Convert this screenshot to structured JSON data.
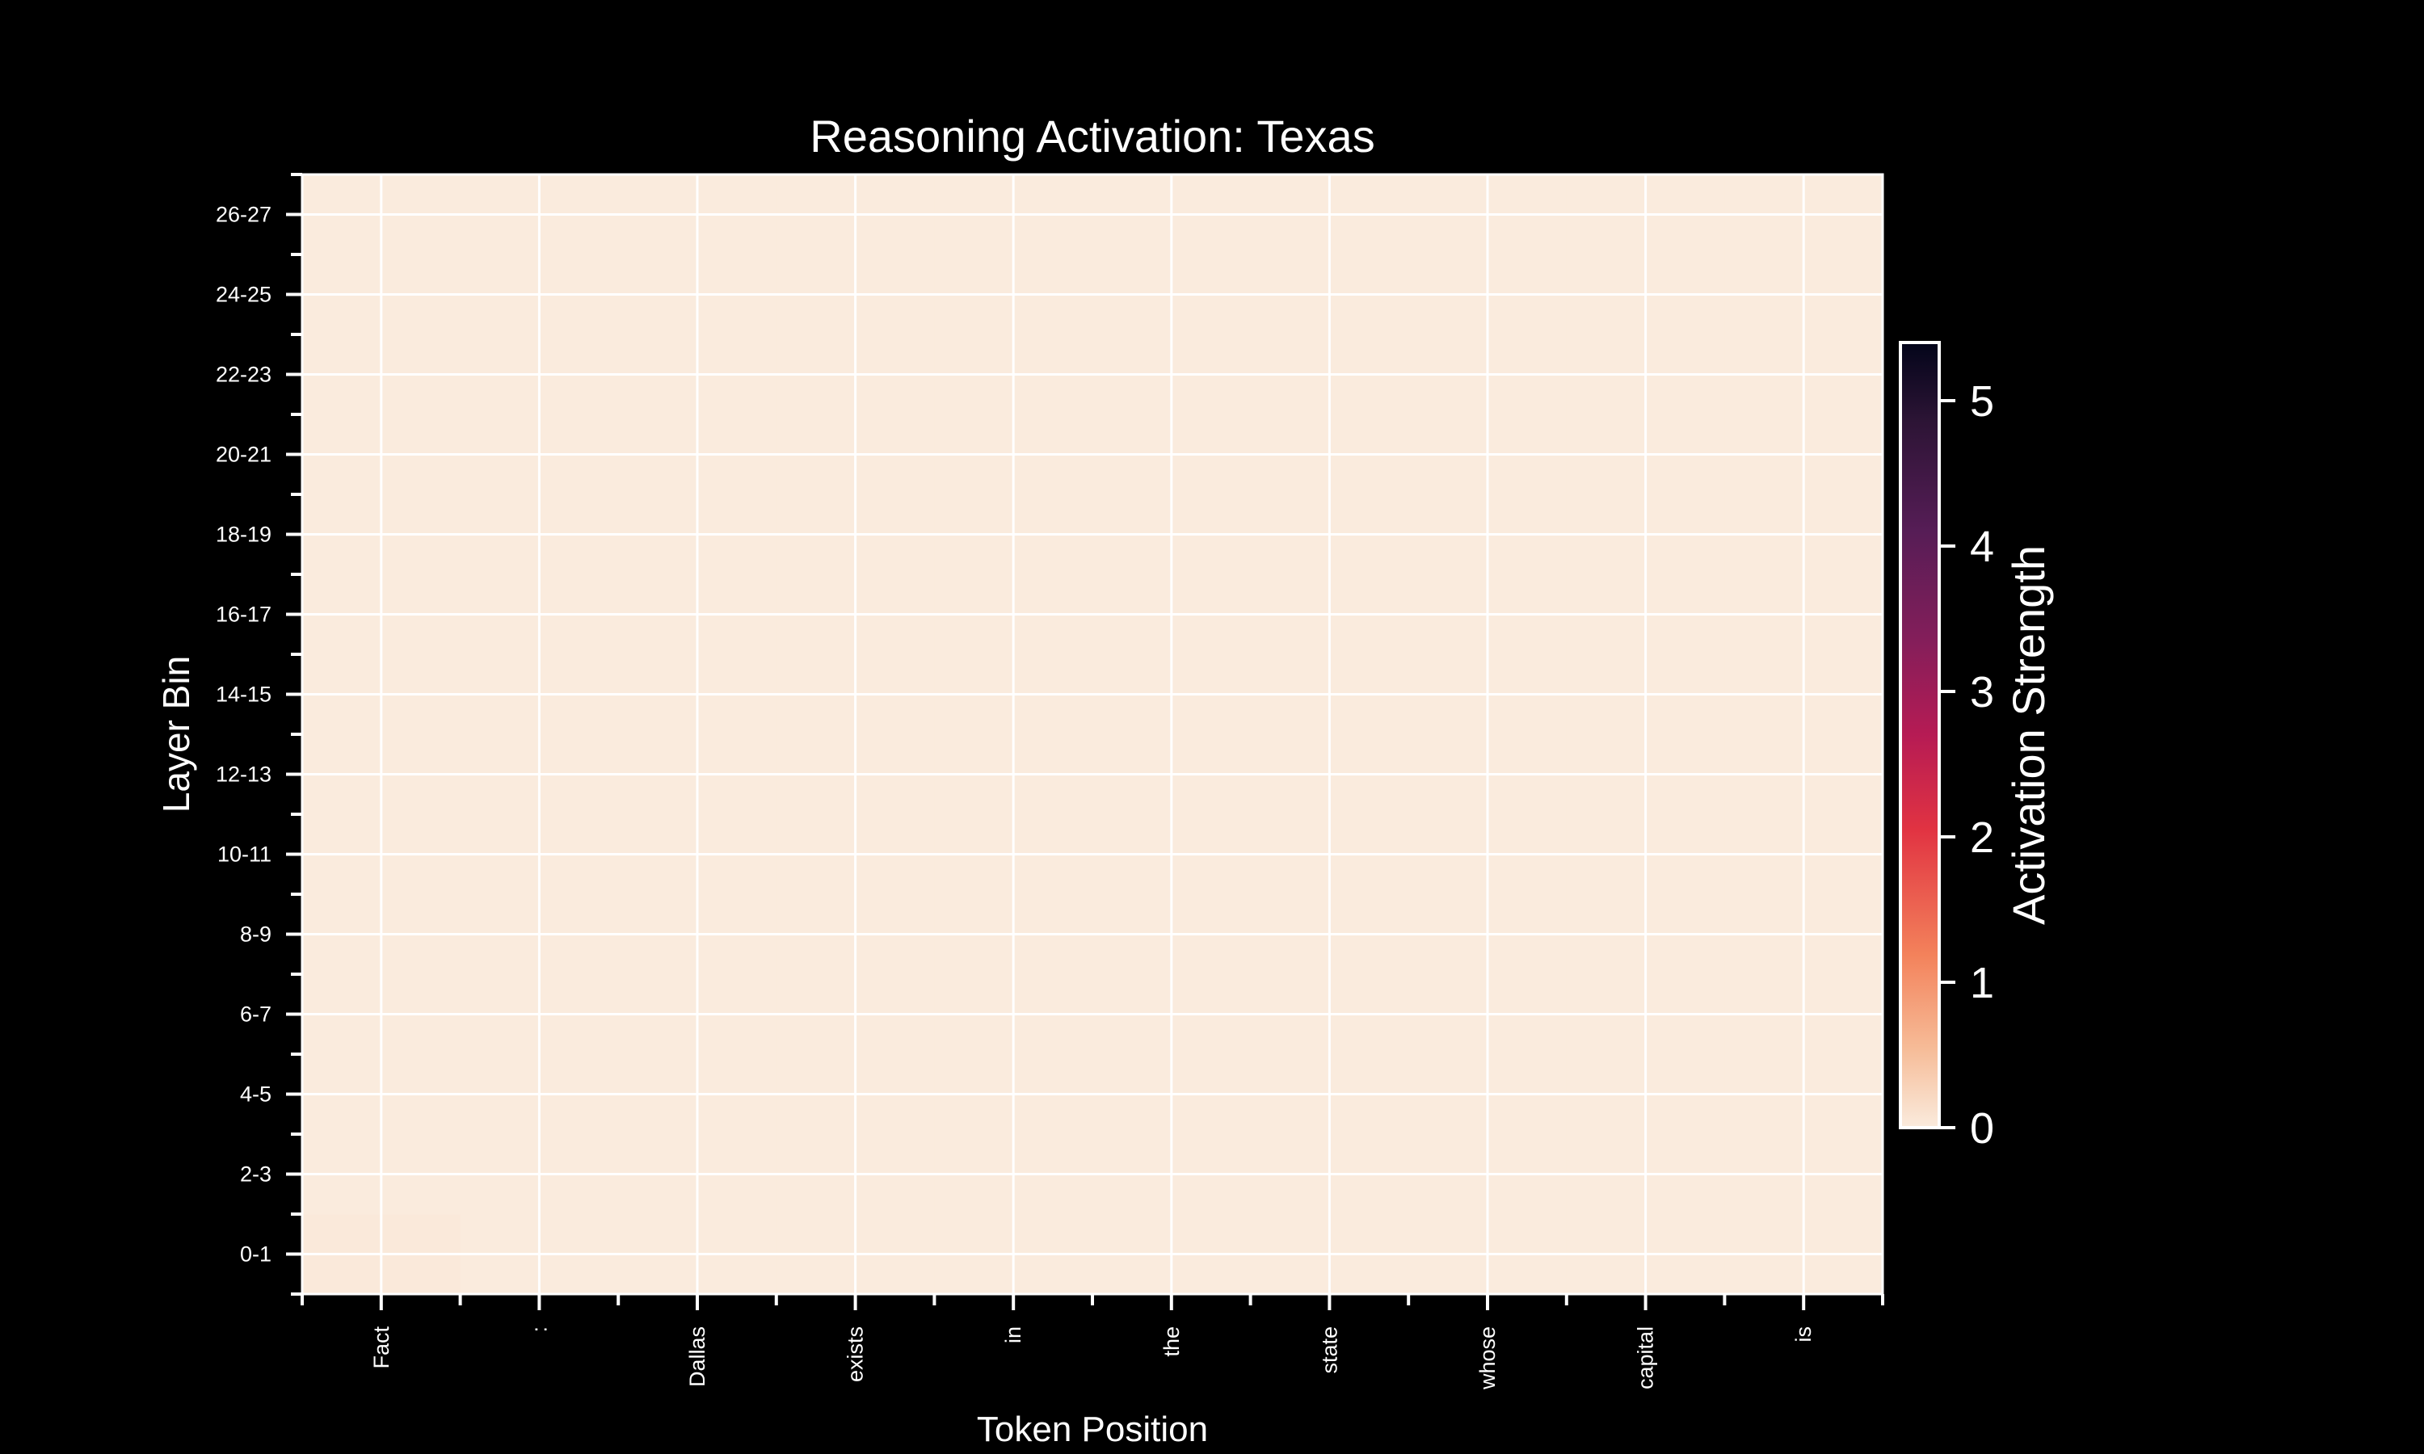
{
  "chart_data": {
    "type": "heatmap",
    "title": "Reasoning Activation: Texas",
    "xlabel": "Token Position",
    "ylabel": "Layer Bin",
    "x_categories": [
      "Fact",
      ":",
      "Dallas",
      "exists",
      "in",
      "the",
      "state",
      "whose",
      "capital",
      "is"
    ],
    "y_categories": [
      "0-1",
      "2-3",
      "4-5",
      "6-7",
      "8-9",
      "10-11",
      "12-13",
      "14-15",
      "16-17",
      "18-19",
      "20-21",
      "22-23",
      "24-25",
      "26-27"
    ],
    "values": [
      [
        0.02,
        0,
        0,
        0,
        0,
        0,
        0,
        0,
        0,
        0
      ],
      [
        0,
        0,
        0,
        0,
        0,
        0,
        0,
        0,
        0,
        0
      ],
      [
        0,
        0,
        0,
        0,
        0,
        0,
        0,
        0,
        0,
        0
      ],
      [
        0,
        0,
        0,
        0,
        0,
        0,
        0,
        0,
        0,
        0
      ],
      [
        0,
        0,
        0,
        0,
        0,
        0,
        0,
        0,
        0,
        0
      ],
      [
        0,
        0,
        0,
        0,
        0,
        0,
        0,
        0,
        0,
        0
      ],
      [
        0,
        0,
        0,
        0,
        0,
        0,
        0,
        0,
        0,
        0
      ],
      [
        0,
        0,
        0,
        0,
        0,
        0,
        0,
        0,
        0,
        0
      ],
      [
        0,
        0,
        0,
        0,
        0,
        0,
        0,
        0,
        0,
        0
      ],
      [
        0,
        0,
        0,
        0,
        0,
        0,
        0,
        0,
        0,
        0
      ],
      [
        0,
        0,
        0,
        0,
        0,
        0,
        0,
        0,
        0,
        0
      ],
      [
        0,
        0,
        0,
        0,
        0,
        0,
        0,
        0,
        0,
        0
      ],
      [
        0,
        0,
        0,
        0,
        0,
        0,
        0,
        0,
        0,
        0
      ],
      [
        0,
        0,
        0,
        0,
        0,
        0,
        0,
        0,
        0,
        0
      ]
    ],
    "colorbar": {
      "label": "Activation Strength",
      "range": [
        0,
        5.4
      ],
      "ticks": [
        0,
        1,
        2,
        3,
        4,
        5
      ],
      "colormap": "rocket_r"
    },
    "grid": true
  },
  "colors": {
    "background": "#000000",
    "foreground": "#ffffff",
    "cell_zero": "#faebdd"
  }
}
